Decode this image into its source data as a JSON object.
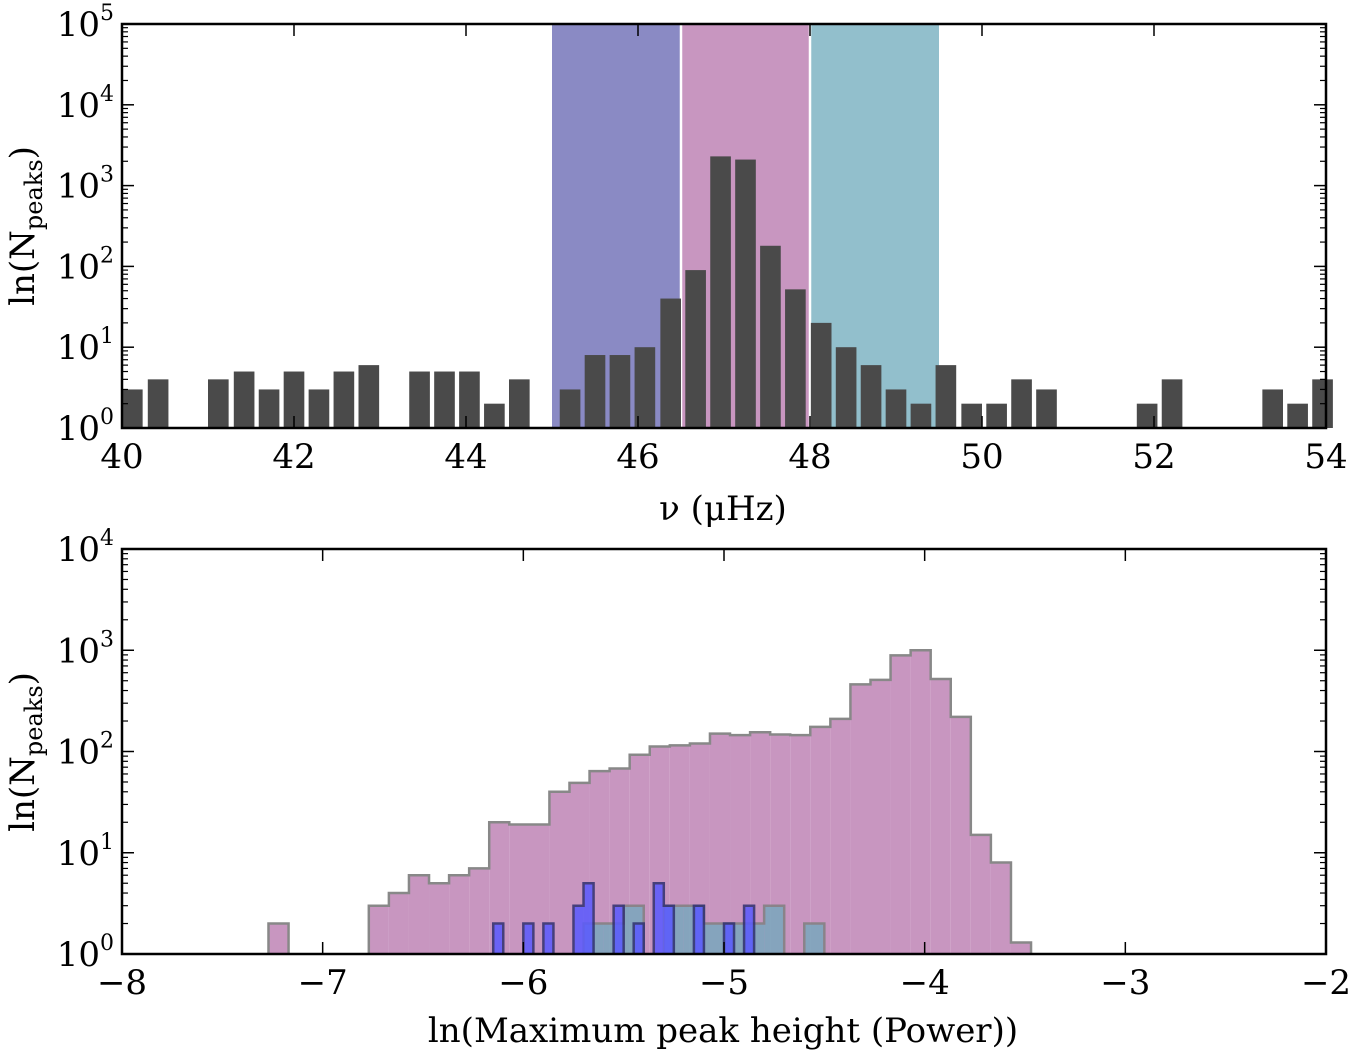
{
  "chart_data": [
    {
      "type": "bar",
      "title": "",
      "xlabel": "ν (μHz)",
      "ylabel": "ln(N",
      "ylabel_sub": "peaks",
      "ylabel_close": ")",
      "xlim": [
        40,
        54
      ],
      "ylim": [
        1,
        100000
      ],
      "yscale": "log",
      "x_ticks": [
        40,
        42,
        44,
        46,
        48,
        50,
        52,
        54
      ],
      "y_ticks": [
        {
          "base": "10",
          "exp": "0",
          "value": 1
        },
        {
          "base": "10",
          "exp": "1",
          "value": 10
        },
        {
          "base": "10",
          "exp": "2",
          "value": 100
        },
        {
          "base": "10",
          "exp": "3",
          "value": 1000
        },
        {
          "base": "10",
          "exp": "4",
          "value": 10000
        },
        {
          "base": "10",
          "exp": "5",
          "value": 100000
        }
      ],
      "bands": [
        {
          "name": "blue-band",
          "x0": 45.0,
          "x1": 46.5,
          "color": "#8a8ac4"
        },
        {
          "name": "pink-band",
          "x0": 46.5,
          "x1": 48.0,
          "color": "#c896c0"
        },
        {
          "name": "teal-band",
          "x0": 48.0,
          "x1": 49.5,
          "color": "#92bfcc"
        }
      ],
      "bar_color": "#4a4a4a",
      "bar_width": 0.24,
      "bars": [
        {
          "x": 40.12,
          "y": 3
        },
        {
          "x": 40.42,
          "y": 4
        },
        {
          "x": 41.12,
          "y": 4
        },
        {
          "x": 41.42,
          "y": 5
        },
        {
          "x": 41.71,
          "y": 3
        },
        {
          "x": 42.0,
          "y": 5
        },
        {
          "x": 42.29,
          "y": 3
        },
        {
          "x": 42.58,
          "y": 5
        },
        {
          "x": 42.87,
          "y": 6
        },
        {
          "x": 43.46,
          "y": 5
        },
        {
          "x": 43.75,
          "y": 5
        },
        {
          "x": 44.04,
          "y": 5
        },
        {
          "x": 44.33,
          "y": 2
        },
        {
          "x": 44.62,
          "y": 4
        },
        {
          "x": 45.21,
          "y": 3
        },
        {
          "x": 45.5,
          "y": 8
        },
        {
          "x": 45.79,
          "y": 8
        },
        {
          "x": 46.08,
          "y": 10
        },
        {
          "x": 46.38,
          "y": 40
        },
        {
          "x": 46.67,
          "y": 90
        },
        {
          "x": 46.96,
          "y": 2300
        },
        {
          "x": 47.25,
          "y": 2100
        },
        {
          "x": 47.54,
          "y": 180
        },
        {
          "x": 47.83,
          "y": 52
        },
        {
          "x": 48.13,
          "y": 20
        },
        {
          "x": 48.42,
          "y": 10
        },
        {
          "x": 48.71,
          "y": 6
        },
        {
          "x": 49.0,
          "y": 3
        },
        {
          "x": 49.29,
          "y": 2
        },
        {
          "x": 49.58,
          "y": 6
        },
        {
          "x": 49.88,
          "y": 2
        },
        {
          "x": 50.17,
          "y": 2
        },
        {
          "x": 50.46,
          "y": 4
        },
        {
          "x": 50.75,
          "y": 3
        },
        {
          "x": 51.92,
          "y": 2
        },
        {
          "x": 52.21,
          "y": 4
        },
        {
          "x": 53.38,
          "y": 3
        },
        {
          "x": 53.67,
          "y": 2
        },
        {
          "x": 53.96,
          "y": 4
        }
      ]
    },
    {
      "type": "histogram",
      "title": "",
      "xlabel": "ln(Maximum peak height (Power))",
      "ylabel": "ln(N",
      "ylabel_sub": "peaks",
      "ylabel_close": ")",
      "xlim": [
        -8,
        -2
      ],
      "ylim": [
        1,
        10000
      ],
      "yscale": "log",
      "x_ticks": [
        {
          "label": "−8",
          "value": -8
        },
        {
          "label": "−7",
          "value": -7
        },
        {
          "label": "−6",
          "value": -6
        },
        {
          "label": "−5",
          "value": -5
        },
        {
          "label": "−4",
          "value": -4
        },
        {
          "label": "−3",
          "value": -3
        },
        {
          "label": "−2",
          "value": -2
        }
      ],
      "y_ticks": [
        {
          "base": "10",
          "exp": "0",
          "value": 1
        },
        {
          "base": "10",
          "exp": "1",
          "value": 10
        },
        {
          "base": "10",
          "exp": "2",
          "value": 100
        },
        {
          "base": "10",
          "exp": "3",
          "value": 1000
        },
        {
          "base": "10",
          "exp": "4",
          "value": 10000
        }
      ],
      "series": [
        {
          "name": "pink",
          "fill": "#c896c0",
          "stroke": "#888888",
          "opacity": 1,
          "bins": [
            {
              "x0": -7.27,
              "x1": -7.17,
              "y": 2
            },
            {
              "x0": -6.77,
              "x1": -6.67,
              "y": 3
            },
            {
              "x0": -6.67,
              "x1": -6.57,
              "y": 4
            },
            {
              "x0": -6.57,
              "x1": -6.47,
              "y": 6
            },
            {
              "x0": -6.47,
              "x1": -6.37,
              "y": 5
            },
            {
              "x0": -6.37,
              "x1": -6.27,
              "y": 6
            },
            {
              "x0": -6.27,
              "x1": -6.17,
              "y": 7
            },
            {
              "x0": -6.17,
              "x1": -6.07,
              "y": 20
            },
            {
              "x0": -6.07,
              "x1": -5.87,
              "y": 19
            },
            {
              "x0": -5.87,
              "x1": -5.77,
              "y": 40
            },
            {
              "x0": -5.77,
              "x1": -5.67,
              "y": 49
            },
            {
              "x0": -5.67,
              "x1": -5.57,
              "y": 64
            },
            {
              "x0": -5.57,
              "x1": -5.47,
              "y": 68
            },
            {
              "x0": -5.47,
              "x1": -5.37,
              "y": 93
            },
            {
              "x0": -5.37,
              "x1": -5.27,
              "y": 112
            },
            {
              "x0": -5.27,
              "x1": -5.17,
              "y": 115
            },
            {
              "x0": -5.17,
              "x1": -5.07,
              "y": 120
            },
            {
              "x0": -5.07,
              "x1": -4.97,
              "y": 150
            },
            {
              "x0": -4.97,
              "x1": -4.87,
              "y": 145
            },
            {
              "x0": -4.87,
              "x1": -4.77,
              "y": 155
            },
            {
              "x0": -4.77,
              "x1": -4.67,
              "y": 147
            },
            {
              "x0": -4.67,
              "x1": -4.57,
              "y": 145
            },
            {
              "x0": -4.57,
              "x1": -4.47,
              "y": 175
            },
            {
              "x0": -4.47,
              "x1": -4.37,
              "y": 210
            },
            {
              "x0": -4.37,
              "x1": -4.27,
              "y": 460
            },
            {
              "x0": -4.27,
              "x1": -4.17,
              "y": 510
            },
            {
              "x0": -4.17,
              "x1": -4.07,
              "y": 890
            },
            {
              "x0": -4.07,
              "x1": -3.97,
              "y": 1000
            },
            {
              "x0": -3.97,
              "x1": -3.87,
              "y": 520
            },
            {
              "x0": -3.87,
              "x1": -3.77,
              "y": 220
            },
            {
              "x0": -3.77,
              "x1": -3.67,
              "y": 15
            },
            {
              "x0": -3.67,
              "x1": -3.57,
              "y": 8
            },
            {
              "x0": -3.57,
              "x1": -3.47,
              "y": 1.3
            }
          ]
        },
        {
          "name": "teal",
          "fill": "#7aa7bd",
          "stroke": "#808080",
          "opacity": 0.85,
          "bins": [
            {
              "x0": -5.7,
              "x1": -5.6,
              "y": 2
            },
            {
              "x0": -5.6,
              "x1": -5.5,
              "y": 2
            },
            {
              "x0": -5.5,
              "x1": -5.4,
              "y": 3
            },
            {
              "x0": -5.3,
              "x1": -5.2,
              "y": 3
            },
            {
              "x0": -5.2,
              "x1": -5.1,
              "y": 3
            },
            {
              "x0": -5.1,
              "x1": -5.0,
              "y": 2
            },
            {
              "x0": -5.0,
              "x1": -4.9,
              "y": 2
            },
            {
              "x0": -4.9,
              "x1": -4.8,
              "y": 2
            },
            {
              "x0": -4.8,
              "x1": -4.7,
              "y": 3
            },
            {
              "x0": -4.6,
              "x1": -4.5,
              "y": 2
            }
          ]
        },
        {
          "name": "blue",
          "fill": "#5a5aff",
          "stroke": "#303070",
          "opacity": 0.85,
          "bins": [
            {
              "x0": -6.15,
              "x1": -6.1,
              "y": 2
            },
            {
              "x0": -6.0,
              "x1": -5.95,
              "y": 2
            },
            {
              "x0": -5.9,
              "x1": -5.85,
              "y": 2
            },
            {
              "x0": -5.75,
              "x1": -5.7,
              "y": 3
            },
            {
              "x0": -5.7,
              "x1": -5.65,
              "y": 5
            },
            {
              "x0": -5.55,
              "x1": -5.5,
              "y": 3
            },
            {
              "x0": -5.45,
              "x1": -5.4,
              "y": 2
            },
            {
              "x0": -5.35,
              "x1": -5.3,
              "y": 5
            },
            {
              "x0": -5.3,
              "x1": -5.25,
              "y": 3
            },
            {
              "x0": -5.15,
              "x1": -5.1,
              "y": 3
            },
            {
              "x0": -5.0,
              "x1": -4.95,
              "y": 2
            },
            {
              "x0": -4.9,
              "x1": -4.85,
              "y": 3
            }
          ]
        }
      ]
    }
  ]
}
